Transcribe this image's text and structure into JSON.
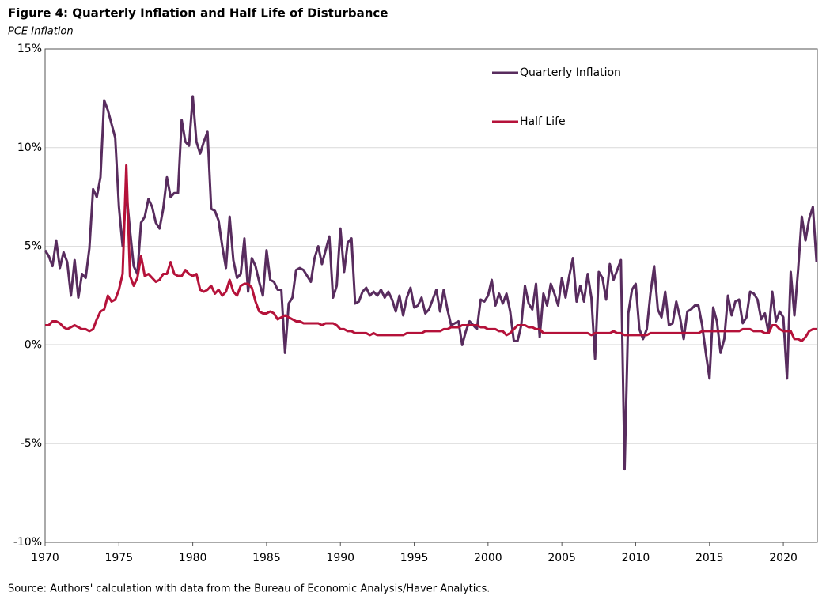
{
  "chart_data": {
    "type": "line",
    "title": "Figure 4: Quarterly Inflation and Half Life of Disturbance",
    "subtitle": "PCE Inflation",
    "source": "Source: Authors' calculation with data from the Bureau of Economic Analysis/Haver Analytics.",
    "x": [
      1970,
      1970.25,
      1970.5,
      1970.75,
      1971,
      1971.25,
      1971.5,
      1971.75,
      1972,
      1972.25,
      1972.5,
      1972.75,
      1973,
      1973.25,
      1973.5,
      1973.75,
      1974,
      1974.25,
      1974.5,
      1974.75,
      1975,
      1975.25,
      1975.5,
      1975.75,
      1976,
      1976.25,
      1976.5,
      1976.75,
      1977,
      1977.25,
      1977.5,
      1977.75,
      1978,
      1978.25,
      1978.5,
      1978.75,
      1979,
      1979.25,
      1979.5,
      1979.75,
      1980,
      1980.25,
      1980.5,
      1980.75,
      1981,
      1981.25,
      1981.5,
      1981.75,
      1982,
      1982.25,
      1982.5,
      1982.75,
      1983,
      1983.25,
      1983.5,
      1983.75,
      1984,
      1984.25,
      1984.5,
      1984.75,
      1985,
      1985.25,
      1985.5,
      1985.75,
      1986,
      1986.25,
      1986.5,
      1986.75,
      1987,
      1987.25,
      1987.5,
      1987.75,
      1988,
      1988.25,
      1988.5,
      1988.75,
      1989,
      1989.25,
      1989.5,
      1989.75,
      1990,
      1990.25,
      1990.5,
      1990.75,
      1991,
      1991.25,
      1991.5,
      1991.75,
      1992,
      1992.25,
      1992.5,
      1992.75,
      1993,
      1993.25,
      1993.5,
      1993.75,
      1994,
      1994.25,
      1994.5,
      1994.75,
      1995,
      1995.25,
      1995.5,
      1995.75,
      1996,
      1996.25,
      1996.5,
      1996.75,
      1997,
      1997.25,
      1997.5,
      1997.75,
      1998,
      1998.25,
      1998.5,
      1998.75,
      1999,
      1999.25,
      1999.5,
      1999.75,
      2000,
      2000.25,
      2000.5,
      2000.75,
      2001,
      2001.25,
      2001.5,
      2001.75,
      2002,
      2002.25,
      2002.5,
      2002.75,
      2003,
      2003.25,
      2003.5,
      2003.75,
      2004,
      2004.25,
      2004.5,
      2004.75,
      2005,
      2005.25,
      2005.5,
      2005.75,
      2006,
      2006.25,
      2006.5,
      2006.75,
      2007,
      2007.25,
      2007.5,
      2007.75,
      2008,
      2008.25,
      2008.5,
      2008.75,
      2009,
      2009.25,
      2009.5,
      2009.75,
      2010,
      2010.25,
      2010.5,
      2010.75,
      2011,
      2011.25,
      2011.5,
      2011.75,
      2012,
      2012.25,
      2012.5,
      2012.75,
      2013,
      2013.25,
      2013.5,
      2013.75,
      2014,
      2014.25,
      2014.5,
      2014.75,
      2015,
      2015.25,
      2015.5,
      2015.75,
      2016,
      2016.25,
      2016.5,
      2016.75,
      2017,
      2017.25,
      2017.5,
      2017.75,
      2018,
      2018.25,
      2018.5,
      2018.75,
      2019,
      2019.25,
      2019.5,
      2019.75,
      2020,
      2020.25,
      2020.5,
      2020.75,
      2021,
      2021.25,
      2021.5,
      2021.75,
      2022,
      2022.25
    ],
    "series": [
      {
        "name": "Quarterly Inflation",
        "color": "#582c5e",
        "values": [
          4.8,
          4.5,
          4.0,
          5.3,
          3.9,
          4.7,
          4.2,
          2.5,
          4.3,
          2.4,
          3.6,
          3.4,
          4.9,
          7.9,
          7.5,
          8.5,
          12.4,
          11.9,
          11.2,
          10.5,
          7.0,
          5.0,
          7.8,
          5.8,
          4.0,
          3.6,
          6.2,
          6.5,
          7.4,
          7.0,
          6.2,
          5.9,
          6.9,
          8.5,
          7.5,
          7.7,
          7.7,
          11.4,
          10.3,
          10.1,
          12.6,
          10.3,
          9.7,
          10.3,
          10.8,
          6.9,
          6.8,
          6.3,
          5.0,
          3.9,
          6.5,
          4.3,
          3.4,
          3.6,
          5.4,
          2.7,
          4.4,
          4.0,
          3.2,
          2.5,
          4.8,
          3.3,
          3.2,
          2.8,
          2.8,
          -0.4,
          2.1,
          2.4,
          3.8,
          3.9,
          3.8,
          3.5,
          3.2,
          4.4,
          5.0,
          4.1,
          4.8,
          5.5,
          2.4,
          3.0,
          5.9,
          3.7,
          5.2,
          5.4,
          2.1,
          2.2,
          2.7,
          2.9,
          2.5,
          2.7,
          2.5,
          2.8,
          2.4,
          2.7,
          2.3,
          1.7,
          2.5,
          1.5,
          2.4,
          2.9,
          1.9,
          2.0,
          2.4,
          1.6,
          1.8,
          2.3,
          2.8,
          1.7,
          2.8,
          1.8,
          1.0,
          1.1,
          1.2,
          0.0,
          0.7,
          1.2,
          1.0,
          0.8,
          2.3,
          2.2,
          2.5,
          3.3,
          2.0,
          2.6,
          2.1,
          2.6,
          1.7,
          0.2,
          0.2,
          1.0,
          3.0,
          2.1,
          1.8,
          3.1,
          0.4,
          2.6,
          2.0,
          3.1,
          2.6,
          2.0,
          3.4,
          2.4,
          3.5,
          4.4,
          2.2,
          3.0,
          2.2,
          3.6,
          2.4,
          -0.7,
          3.7,
          3.4,
          2.3,
          4.1,
          3.3,
          3.8,
          4.3,
          -6.3,
          1.6,
          2.8,
          3.1,
          0.8,
          0.3,
          0.8,
          2.6,
          4.0,
          1.8,
          1.4,
          2.7,
          1.0,
          1.1,
          2.2,
          1.4,
          0.3,
          1.7,
          1.8,
          2.0,
          2.0,
          1.0,
          -0.4,
          -1.7,
          1.9,
          1.2,
          -0.4,
          0.3,
          2.5,
          1.5,
          2.2,
          2.3,
          1.1,
          1.4,
          2.7,
          2.6,
          2.3,
          1.3,
          1.6,
          0.6,
          2.7,
          1.2,
          1.7,
          1.4,
          -1.7,
          3.7,
          1.5,
          3.8,
          6.5,
          5.3,
          6.4,
          7.0,
          4.2
        ]
      },
      {
        "name": "Half Life",
        "color": "#b5123a",
        "values": [
          1.0,
          1.0,
          1.2,
          1.2,
          1.1,
          0.9,
          0.8,
          0.9,
          1.0,
          0.9,
          0.8,
          0.8,
          0.7,
          0.8,
          1.3,
          1.7,
          1.8,
          2.5,
          2.2,
          2.3,
          2.8,
          3.6,
          9.1,
          3.5,
          3.0,
          3.4,
          4.5,
          3.5,
          3.6,
          3.4,
          3.2,
          3.3,
          3.6,
          3.6,
          4.2,
          3.6,
          3.5,
          3.5,
          3.8,
          3.6,
          3.5,
          3.6,
          2.8,
          2.7,
          2.8,
          3.0,
          2.6,
          2.8,
          2.5,
          2.7,
          3.3,
          2.7,
          2.5,
          3.0,
          3.1,
          3.1,
          2.9,
          2.2,
          1.7,
          1.6,
          1.6,
          1.7,
          1.6,
          1.3,
          1.4,
          1.5,
          1.4,
          1.3,
          1.2,
          1.2,
          1.1,
          1.1,
          1.1,
          1.1,
          1.1,
          1.0,
          1.1,
          1.1,
          1.1,
          1.0,
          0.8,
          0.8,
          0.7,
          0.7,
          0.6,
          0.6,
          0.6,
          0.6,
          0.5,
          0.6,
          0.5,
          0.5,
          0.5,
          0.5,
          0.5,
          0.5,
          0.5,
          0.5,
          0.6,
          0.6,
          0.6,
          0.6,
          0.6,
          0.7,
          0.7,
          0.7,
          0.7,
          0.7,
          0.8,
          0.8,
          0.9,
          0.9,
          0.9,
          1.0,
          1.0,
          1.0,
          1.0,
          1.0,
          0.9,
          0.9,
          0.8,
          0.8,
          0.8,
          0.7,
          0.7,
          0.5,
          0.6,
          0.8,
          1.0,
          1.0,
          1.0,
          0.9,
          0.9,
          0.8,
          0.8,
          0.6,
          0.6,
          0.6,
          0.6,
          0.6,
          0.6,
          0.6,
          0.6,
          0.6,
          0.6,
          0.6,
          0.6,
          0.6,
          0.5,
          0.6,
          0.6,
          0.6,
          0.6,
          0.6,
          0.7,
          0.6,
          0.6,
          0.5,
          0.5,
          0.5,
          0.5,
          0.5,
          0.5,
          0.5,
          0.6,
          0.6,
          0.6,
          0.6,
          0.6,
          0.6,
          0.6,
          0.6,
          0.6,
          0.6,
          0.6,
          0.6,
          0.6,
          0.6,
          0.7,
          0.7,
          0.7,
          0.7,
          0.7,
          0.7,
          0.7,
          0.7,
          0.7,
          0.7,
          0.7,
          0.8,
          0.8,
          0.8,
          0.7,
          0.7,
          0.7,
          0.6,
          0.6,
          1.0,
          1.0,
          0.8,
          0.7,
          0.7,
          0.7,
          0.3,
          0.3,
          0.2,
          0.4,
          0.7,
          0.8,
          0.8
        ]
      }
    ],
    "xlim": [
      1970,
      2022.3
    ],
    "xticks": [
      1970,
      1975,
      1980,
      1985,
      1990,
      1995,
      2000,
      2005,
      2010,
      2015,
      2020
    ],
    "ylim": [
      -10,
      15
    ],
    "yticks": [
      {
        "value": -10,
        "label": "-10%"
      },
      {
        "value": -5,
        "label": "-5%"
      },
      {
        "value": 0,
        "label": "0%"
      },
      {
        "value": 5,
        "label": "5%"
      },
      {
        "value": 10,
        "label": "10%"
      },
      {
        "value": 15,
        "label": "15%"
      }
    ],
    "grid": true,
    "legend": "top-right"
  }
}
